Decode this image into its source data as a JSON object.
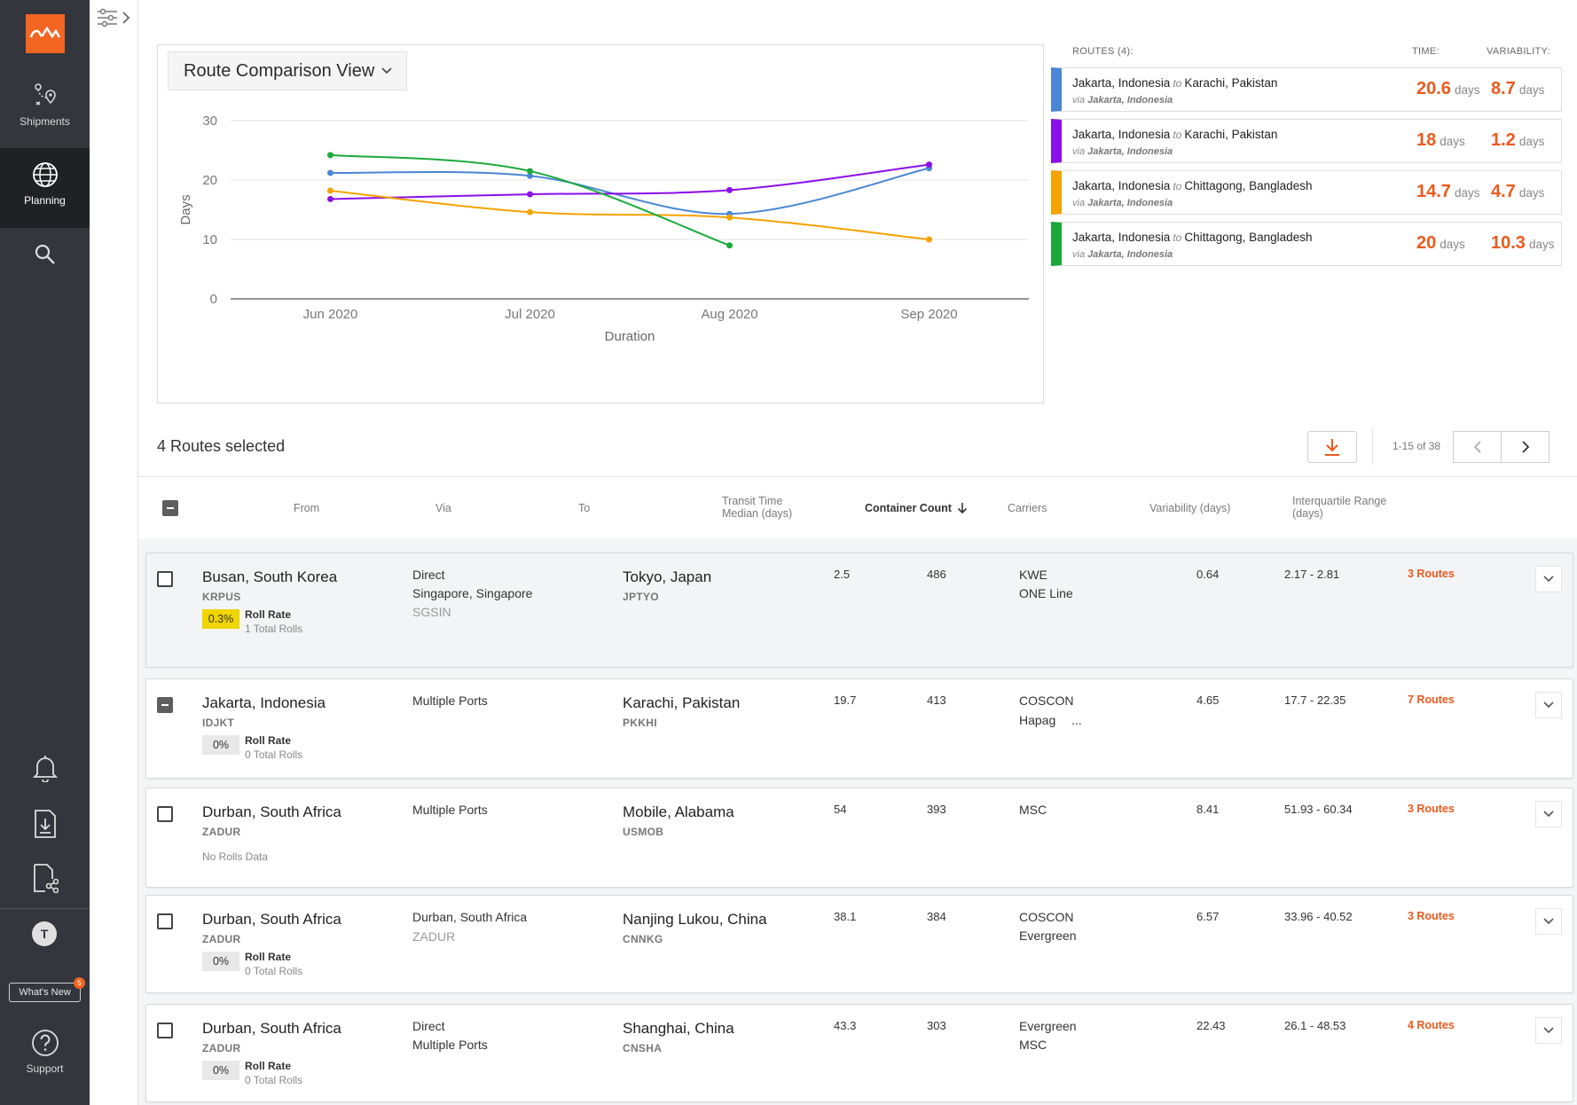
{
  "nav": {
    "shipments_label": "Shipments",
    "planning_label": "Planning",
    "whats_new_label": "What's New",
    "whats_new_count": "5",
    "support_label": "Support",
    "avatar_initial": "T"
  },
  "view_selector": {
    "label": "Route Comparison View"
  },
  "chart_data": {
    "type": "line",
    "x": [
      "Jun 2020",
      "Jul 2020",
      "Aug 2020",
      "Sep 2020"
    ],
    "xlabel": "Duration",
    "ylabel": "Days",
    "ylim": [
      0,
      30
    ],
    "yticks": [
      0,
      10,
      20,
      30
    ],
    "grid": true,
    "series": [
      {
        "color": "#4a86d4",
        "values": [
          21.2,
          20.7,
          14.3,
          22.0
        ]
      },
      {
        "color": "#8a0fe8",
        "values": [
          16.8,
          17.6,
          18.3,
          22.6
        ]
      },
      {
        "color": "#f4a300",
        "values": [
          18.2,
          14.6,
          13.7,
          10.0
        ]
      },
      {
        "color": "#1aaa3a",
        "values": [
          24.2,
          21.5,
          9.0,
          null
        ]
      }
    ]
  },
  "routes_panel": {
    "header_routes": "ROUTES (4):",
    "header_time": "TIME:",
    "header_variability": "VARIABILITY:",
    "to_word": "to",
    "via_word": "via",
    "days_unit": "days",
    "routes": [
      {
        "from": "Jakarta, Indonesia",
        "to": "Karachi, Pakistan",
        "via": "Jakarta, Indonesia",
        "time": "20.6",
        "variability": "8.7",
        "color": "#4a86d4"
      },
      {
        "from": "Jakarta, Indonesia",
        "to": "Karachi, Pakistan",
        "via": "Jakarta, Indonesia",
        "time": "18",
        "variability": "1.2",
        "color": "#8a0fe8"
      },
      {
        "from": "Jakarta, Indonesia",
        "to": "Chittagong, Bangladesh",
        "via": "Jakarta, Indonesia",
        "time": "14.7",
        "variability": "4.7",
        "color": "#f4a300"
      },
      {
        "from": "Jakarta, Indonesia",
        "to": "Chittagong, Bangladesh",
        "via": "Jakarta, Indonesia",
        "time": "20",
        "variability": "10.3",
        "color": "#1aaa3a"
      }
    ]
  },
  "table": {
    "selected_text": "4 Routes selected",
    "pagination": "1-15 of 38",
    "headers": {
      "from": "From",
      "via": "Via",
      "to": "To",
      "transit_line1": "Transit Time",
      "transit_line2": "Median (days)",
      "container": "Container Count",
      "carriers": "Carriers",
      "variability": "Variability (days)",
      "iqr_line1": "Interquartile Range",
      "iqr_line2": "(days)"
    },
    "roll_rate_label": "Roll Rate",
    "rows": [
      {
        "from": "Busan, South Korea",
        "from_code": "KRPUS",
        "roll_rate": "0.3%",
        "total_rolls": "1 Total Rolls",
        "via1": "Direct",
        "via2": "Singapore, Singapore",
        "via3": "SGSIN",
        "to": "Tokyo, Japan",
        "to_code": "JPTYO",
        "transit": "2.5",
        "containers": "486",
        "carrier1": "KWE",
        "carrier2": "ONE Line",
        "variability": "0.64",
        "iqr": "2.17 - 2.81",
        "routes": "3 Routes"
      },
      {
        "from": "Jakarta, Indonesia",
        "from_code": "IDJKT",
        "roll_rate": "0%",
        "total_rolls": "0 Total Rolls",
        "via1": "Multiple Ports",
        "to": "Karachi, Pakistan",
        "to_code": "PKKHI",
        "transit": "19.7",
        "containers": "413",
        "carrier1": "COSCON",
        "carrier2": "Hapag",
        "carrier_more": "...",
        "variability": "4.65",
        "iqr": "17.7 - 22.35",
        "routes": "7 Routes"
      },
      {
        "from": "Durban, South Africa",
        "from_code": "ZADUR",
        "no_rolls": "No Rolls Data",
        "via1": "Multiple Ports",
        "to": "Mobile, Alabama",
        "to_code": "USMOB",
        "transit": "54",
        "containers": "393",
        "carrier1": "MSC",
        "variability": "8.41",
        "iqr": "51.93 - 60.34",
        "routes": "3 Routes"
      },
      {
        "from": "Durban, South Africa",
        "from_code": "ZADUR",
        "roll_rate": "0%",
        "total_rolls": "0 Total Rolls",
        "via1": "Durban, South Africa",
        "via2": "ZADUR",
        "to": "Nanjing Lukou, China",
        "to_code": "CNNKG",
        "transit": "38.1",
        "containers": "384",
        "carrier1": "COSCON",
        "carrier2": "Evergreen",
        "variability": "6.57",
        "iqr": "33.96 - 40.52",
        "routes": "3 Routes"
      },
      {
        "from": "Durban, South Africa",
        "from_code": "ZADUR",
        "roll_rate": "0%",
        "total_rolls": "0 Total Rolls",
        "via1": "Direct",
        "via2": "Multiple Ports",
        "to": "Shanghai, China",
        "to_code": "CNSHA",
        "transit": "43.3",
        "containers": "303",
        "carrier1": "Evergreen",
        "carrier2": "MSC",
        "variability": "22.43",
        "iqr": "26.1 - 48.53",
        "routes": "4 Routes"
      }
    ]
  }
}
